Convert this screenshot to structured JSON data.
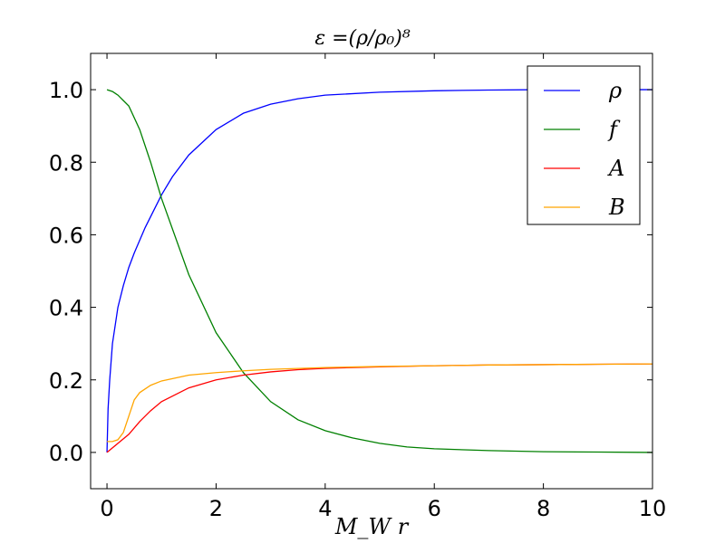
{
  "chart_data": {
    "type": "line",
    "title": "ε =(ρ/ρ₀)⁸",
    "xlabel": "M_W r",
    "ylabel": "",
    "xlim": [
      -0.3,
      10
    ],
    "ylim": [
      -0.1,
      1.1
    ],
    "xticks": [
      0,
      2,
      4,
      6,
      8,
      10
    ],
    "yticks": [
      0.0,
      0.2,
      0.4,
      0.6,
      0.8,
      1.0
    ],
    "xtick_labels": [
      "0",
      "2",
      "4",
      "6",
      "8",
      "10"
    ],
    "ytick_labels": [
      "0.0",
      "0.2",
      "0.4",
      "0.6",
      "0.8",
      "1.0"
    ],
    "grid": false,
    "legend_position": "top-right",
    "series": [
      {
        "name": "ρ",
        "color": "#0000ff",
        "x": [
          0,
          0.02,
          0.05,
          0.1,
          0.2,
          0.3,
          0.4,
          0.5,
          0.7,
          1.0,
          1.2,
          1.5,
          2.0,
          2.5,
          3.0,
          3.5,
          4.0,
          5.0,
          6.0,
          7.0,
          8.0,
          9.0,
          10.0
        ],
        "y": [
          0.0,
          0.12,
          0.2,
          0.3,
          0.4,
          0.46,
          0.51,
          0.55,
          0.62,
          0.71,
          0.76,
          0.82,
          0.89,
          0.935,
          0.96,
          0.975,
          0.985,
          0.993,
          0.997,
          0.999,
          1.0,
          1.0,
          1.0
        ]
      },
      {
        "name": "f",
        "color": "#008000",
        "x": [
          0,
          0.1,
          0.2,
          0.3,
          0.4,
          0.6,
          0.8,
          1.0,
          1.5,
          2.0,
          2.5,
          3.0,
          3.5,
          4.0,
          4.5,
          5.0,
          5.5,
          6.0,
          7.0,
          8.0,
          9.0,
          10.0
        ],
        "y": [
          1.0,
          0.995,
          0.985,
          0.97,
          0.955,
          0.89,
          0.8,
          0.7,
          0.49,
          0.33,
          0.22,
          0.14,
          0.09,
          0.06,
          0.04,
          0.025,
          0.015,
          0.01,
          0.005,
          0.002,
          0.001,
          0.0
        ]
      },
      {
        "name": "A",
        "color": "#ff0000",
        "x": [
          0,
          0.2,
          0.4,
          0.6,
          0.8,
          1.0,
          1.5,
          2.0,
          2.5,
          3.0,
          3.5,
          4.0,
          5.0,
          6.0,
          7.0,
          8.0,
          9.0,
          10.0
        ],
        "y": [
          0.0,
          0.025,
          0.05,
          0.085,
          0.115,
          0.14,
          0.178,
          0.2,
          0.213,
          0.222,
          0.228,
          0.232,
          0.236,
          0.239,
          0.241,
          0.242,
          0.243,
          0.244
        ]
      },
      {
        "name": "B",
        "color": "#ffa500",
        "x": [
          0,
          0.1,
          0.2,
          0.3,
          0.4,
          0.5,
          0.6,
          0.8,
          1.0,
          1.5,
          2.0,
          2.5,
          3.0,
          4.0,
          5.0,
          6.0,
          7.0,
          8.0,
          9.0,
          10.0
        ],
        "y": [
          0.03,
          0.03,
          0.035,
          0.055,
          0.1,
          0.145,
          0.165,
          0.185,
          0.197,
          0.213,
          0.22,
          0.225,
          0.229,
          0.234,
          0.237,
          0.239,
          0.241,
          0.242,
          0.243,
          0.244
        ]
      }
    ]
  }
}
